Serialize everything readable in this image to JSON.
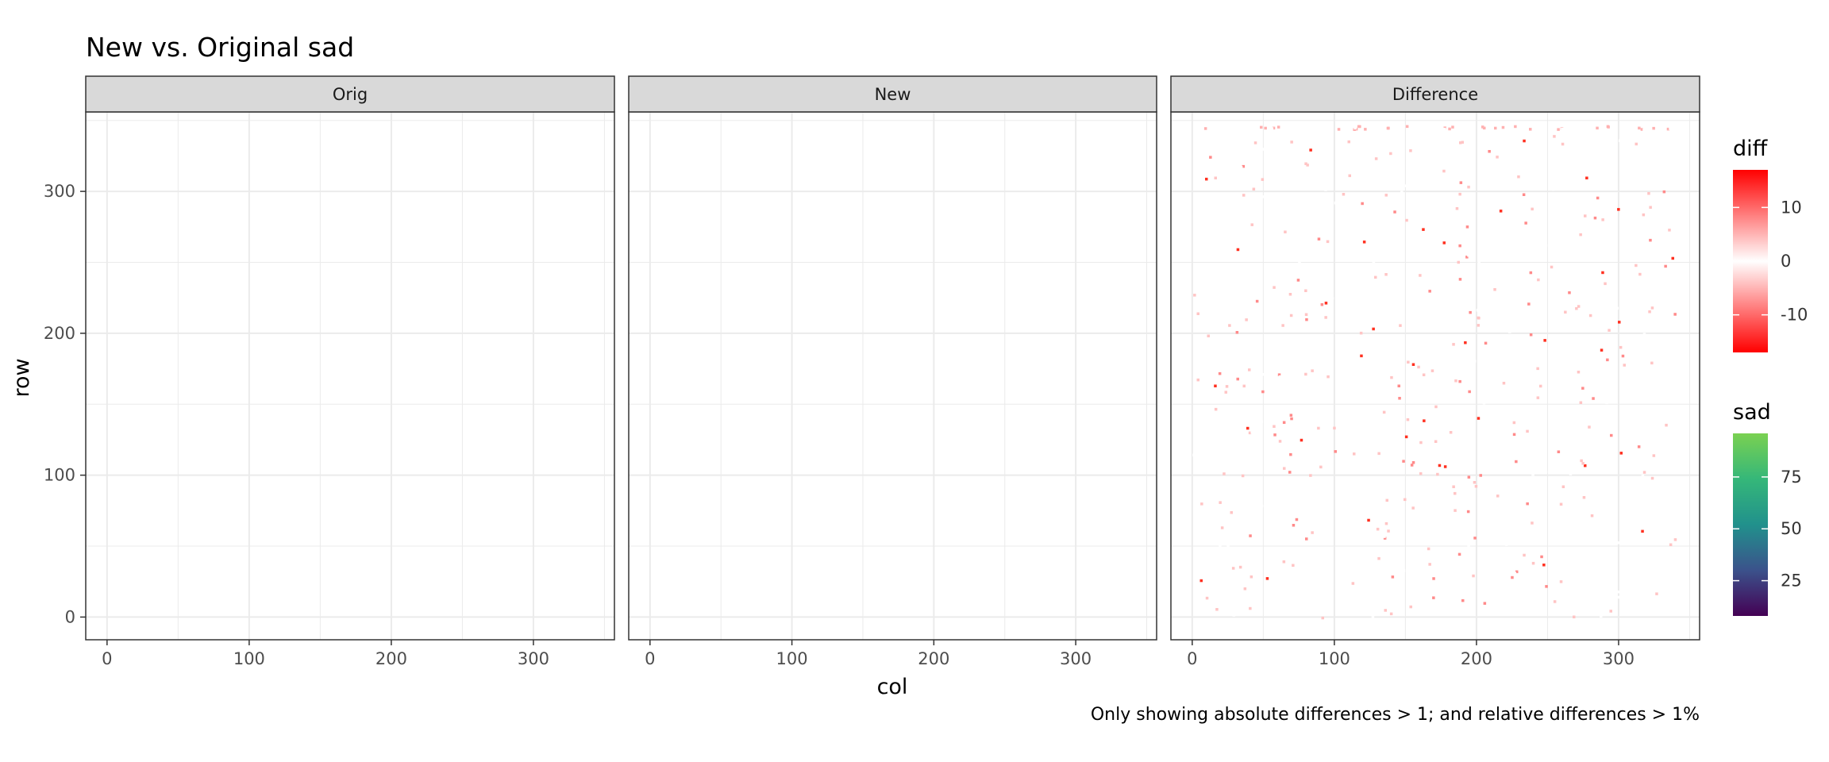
{
  "figure": {
    "title": "New vs. Original sad",
    "caption": "Only showing absolute differences > 1; and relative differences > 1%"
  },
  "colors": {
    "panel_background": "#ffffff",
    "panel_border": "#333333",
    "strip_background": "#d9d9d9",
    "grid": "#ebebeb",
    "viridis_low": "#440154",
    "viridis_mid": "#31688e",
    "viridis_high": "#5ec962",
    "diff_low": "#ff0000",
    "diff_mid": "#ffffff",
    "diff_high": "#ff0000"
  },
  "chart_data": {
    "type": "heatmap",
    "title": "New vs. Original sad",
    "xlabel": "col",
    "ylabel": "row",
    "facets": [
      "Orig",
      "New",
      "Difference"
    ],
    "xlim": [
      -15,
      357
    ],
    "ylim": [
      356,
      -16
    ],
    "x_ticks": [
      0,
      100,
      200,
      300
    ],
    "y_ticks": [
      0,
      100,
      200,
      300
    ],
    "x_tick_labels": [
      "0",
      "100",
      "200",
      "300"
    ],
    "y_tick_labels": [
      "0",
      "100",
      "200",
      "300"
    ],
    "grid": true,
    "matrix_extent": {
      "cols": [
        0,
        340
      ],
      "rows": [
        0,
        340
      ]
    },
    "fill_scale": {
      "name": "sad",
      "range": [
        8,
        96
      ],
      "breaks": [
        25,
        50,
        75
      ],
      "break_labels": [
        "25",
        "50",
        "75"
      ],
      "palette": "viridis"
    },
    "diff_scale": {
      "name": "diff",
      "range": [
        -17,
        17
      ],
      "breaks": [
        10,
        0,
        -10
      ],
      "break_labels": [
        "10",
        "0",
        "-10"
      ],
      "palette": "red-white-red"
    },
    "legend_position": "right",
    "caption": "Only showing absolute differences > 1; and relative differences > 1%"
  }
}
